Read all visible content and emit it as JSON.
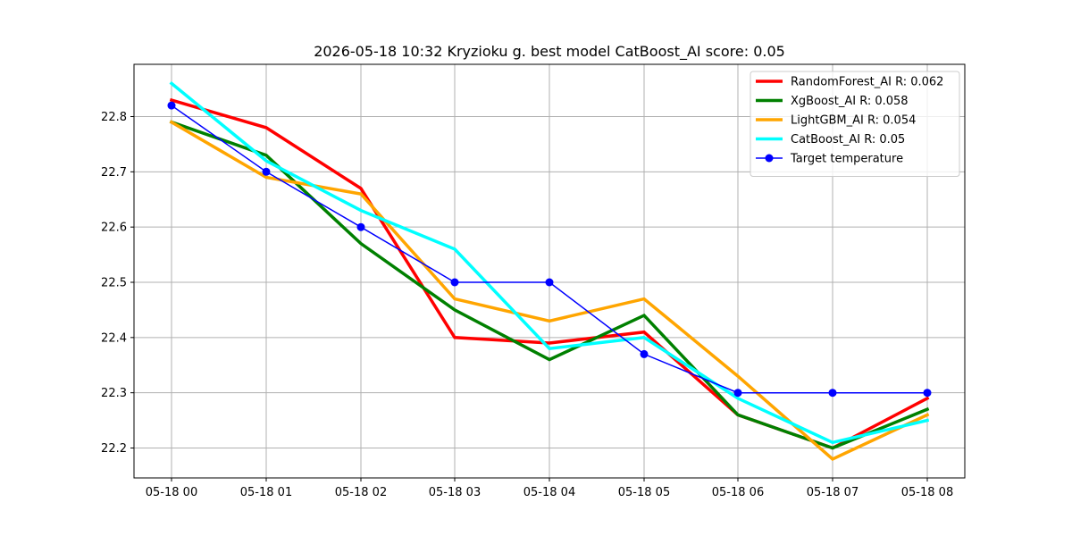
{
  "chart_data": {
    "type": "line",
    "title": "2026-05-18 10:32 Kryzioku g. best model CatBoost_AI score: 0.05",
    "xlabel": "",
    "ylabel": "",
    "categories": [
      "05-18 00",
      "05-18 01",
      "05-18 02",
      "05-18 03",
      "05-18 04",
      "05-18 05",
      "05-18 06",
      "05-18 07",
      "05-18 08"
    ],
    "ylim": [
      22.15,
      22.89
    ],
    "yticks": [
      "22.2",
      "22.3",
      "22.4",
      "22.5",
      "22.6",
      "22.7",
      "22.8"
    ],
    "grid": true,
    "legend_position": "top-right",
    "series": [
      {
        "name": "RandomForest_AI R: 0.062",
        "color": "#ff0000",
        "values": [
          22.83,
          22.78,
          22.67,
          22.4,
          22.39,
          22.41,
          22.26,
          22.2,
          22.29
        ]
      },
      {
        "name": "XgBoost_AI R: 0.058",
        "color": "#008000",
        "values": [
          22.79,
          22.73,
          22.57,
          22.45,
          22.36,
          22.44,
          22.26,
          22.2,
          22.27
        ]
      },
      {
        "name": "LightGBM_AI R: 0.054",
        "color": "#ffa500",
        "values": [
          22.79,
          22.69,
          22.66,
          22.47,
          22.43,
          22.47,
          22.33,
          22.18,
          22.26
        ]
      },
      {
        "name": "CatBoost_AI R: 0.05",
        "color": "#00ffff",
        "values": [
          22.86,
          22.72,
          22.63,
          22.56,
          22.38,
          22.4,
          22.29,
          22.21,
          22.25
        ]
      },
      {
        "name": "Target temperature",
        "color": "#0000ff",
        "marker": "circle",
        "values": [
          22.82,
          22.7,
          22.6,
          22.5,
          22.5,
          22.37,
          22.3,
          22.3,
          22.3
        ]
      }
    ]
  }
}
